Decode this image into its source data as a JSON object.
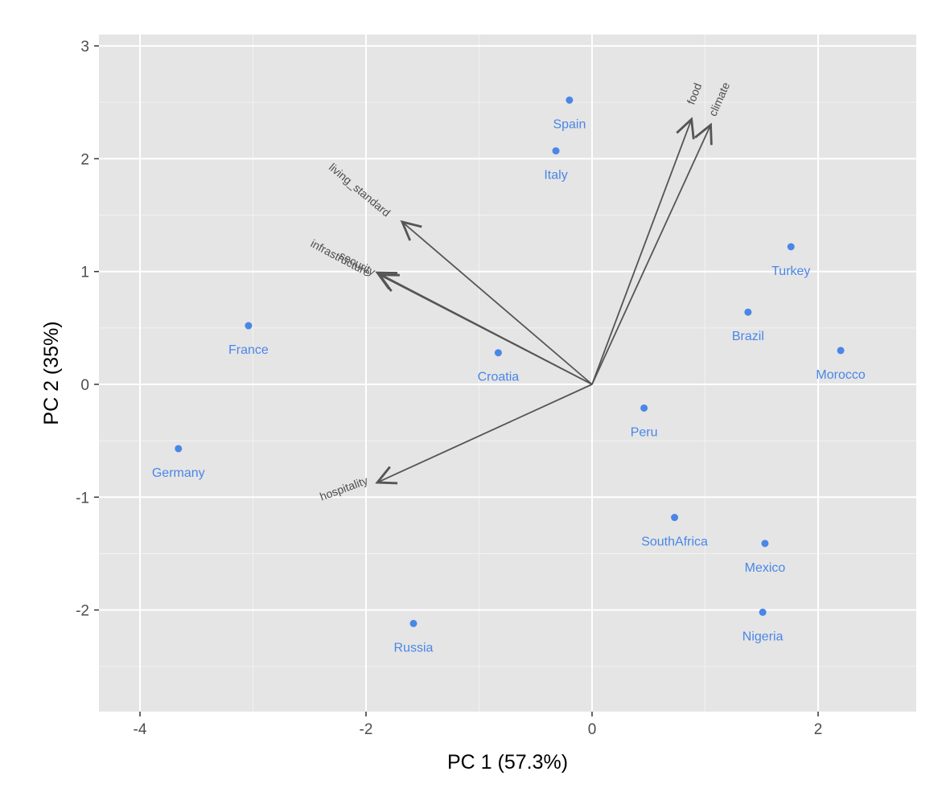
{
  "chart_data": {
    "type": "scatter",
    "title": "",
    "xlabel": "PC 1 (57.3%)",
    "ylabel": "PC 2 (35%)",
    "xlim": [
      -4.35,
      2.9
    ],
    "ylim": [
      -2.9,
      3.1
    ],
    "x_ticks": [
      -4,
      -2,
      0,
      2
    ],
    "y_ticks": [
      -2,
      -1,
      0,
      1,
      2,
      3
    ],
    "x_tick_labels": [
      "-4",
      "-2",
      "0",
      "2"
    ],
    "y_tick_labels": [
      "-2",
      "-1",
      "0",
      "1",
      "2",
      "3"
    ],
    "grid": true,
    "background": "#e5e5e5",
    "point_color": "#4a86e8",
    "arrow_color": "#555555",
    "points": [
      {
        "label": "Spain",
        "x": -0.2,
        "y": 2.52
      },
      {
        "label": "Italy",
        "x": -0.32,
        "y": 2.07
      },
      {
        "label": "Turkey",
        "x": 1.76,
        "y": 1.22
      },
      {
        "label": "Brazil",
        "x": 1.38,
        "y": 0.64
      },
      {
        "label": "Morocco",
        "x": 2.2,
        "y": 0.3
      },
      {
        "label": "France",
        "x": -3.04,
        "y": 0.52
      },
      {
        "label": "Croatia",
        "x": -0.83,
        "y": 0.28
      },
      {
        "label": "Peru",
        "x": 0.46,
        "y": -0.21
      },
      {
        "label": "Germany",
        "x": -3.66,
        "y": -0.57
      },
      {
        "label": "SouthAfrica",
        "x": 0.73,
        "y": -1.18
      },
      {
        "label": "Mexico",
        "x": 1.53,
        "y": -1.41
      },
      {
        "label": "Nigeria",
        "x": 1.51,
        "y": -2.02
      },
      {
        "label": "Russia",
        "x": -1.58,
        "y": -2.12
      }
    ],
    "loadings": [
      {
        "name": "food",
        "x": 0.88,
        "y": 2.35
      },
      {
        "name": "climate",
        "x": 1.05,
        "y": 2.3
      },
      {
        "name": "living_standard",
        "x": -1.68,
        "y": 1.44
      },
      {
        "name": "infrastructure",
        "x": -1.9,
        "y": 0.99
      },
      {
        "name": "security",
        "x": -1.88,
        "y": 0.97
      },
      {
        "name": "hospitality",
        "x": -1.9,
        "y": -0.87
      }
    ]
  }
}
